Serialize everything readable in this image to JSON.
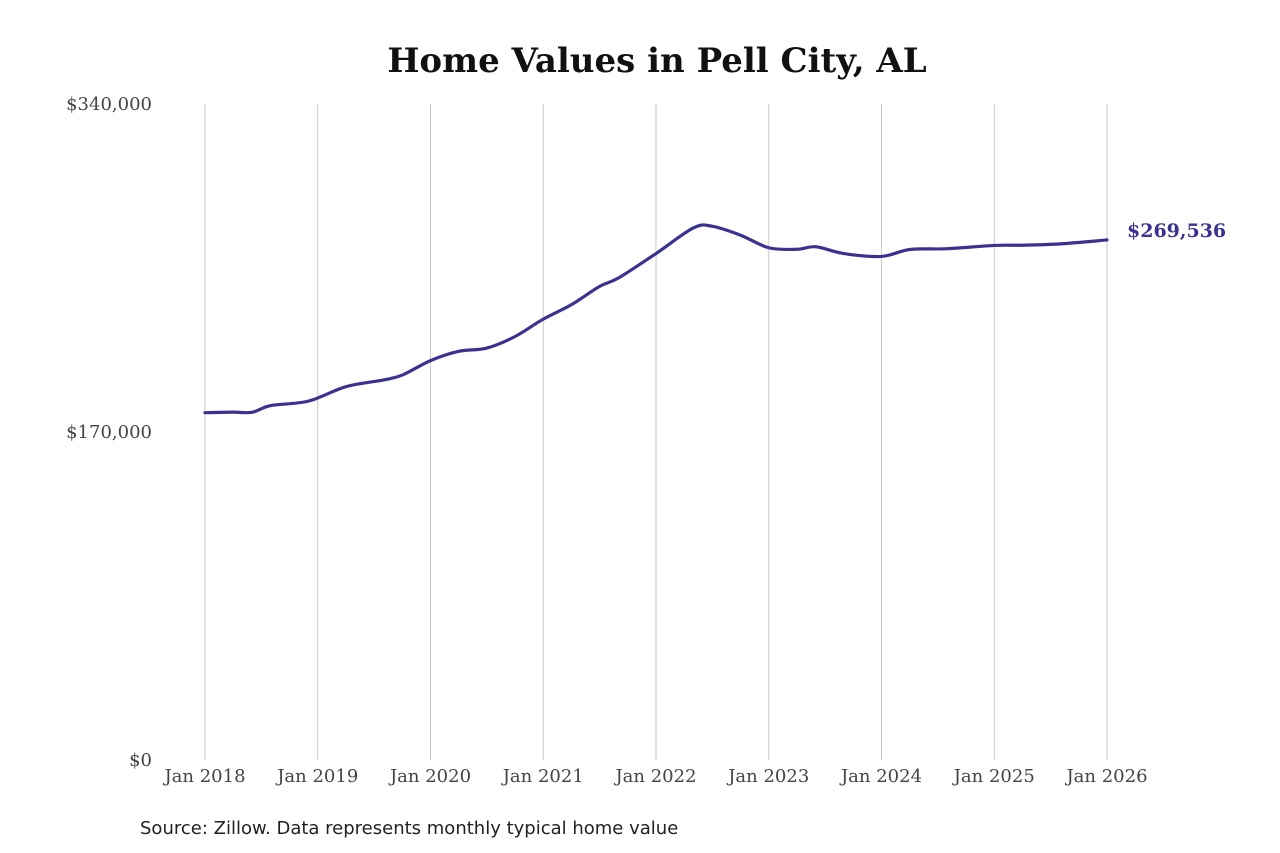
{
  "chart_data": {
    "type": "line",
    "title": "Home Values in Pell City, AL",
    "xlabel": "",
    "ylabel": "",
    "ylim": [
      0,
      340000
    ],
    "y_ticks": [
      {
        "value": 0,
        "label": "$0"
      },
      {
        "value": 170000,
        "label": "$170,000"
      },
      {
        "value": 340000,
        "label": "$340,000"
      }
    ],
    "x_ticks": [
      "Jan 2018",
      "Jan 2019",
      "Jan 2020",
      "Jan 2021",
      "Jan 2022",
      "Jan 2023",
      "Jan 2024",
      "Jan 2025",
      "Jan 2026"
    ],
    "grid": "vertical",
    "series": [
      {
        "color": "#3a3291",
        "points": [
          [
            "2018-01",
            180000
          ],
          [
            "2018-04",
            180300
          ],
          [
            "2018-06",
            180200
          ],
          [
            "2018-08",
            183700
          ],
          [
            "2018-12",
            186000
          ],
          [
            "2019-04",
            193500
          ],
          [
            "2019-08",
            197000
          ],
          [
            "2019-10",
            199500
          ],
          [
            "2020-01",
            207000
          ],
          [
            "2020-04",
            211800
          ],
          [
            "2020-07",
            213500
          ],
          [
            "2020-10",
            219500
          ],
          [
            "2021-01",
            228500
          ],
          [
            "2021-04",
            236000
          ],
          [
            "2021-07",
            245500
          ],
          [
            "2021-09",
            249800
          ],
          [
            "2022-01",
            262500
          ],
          [
            "2022-05",
            275800
          ],
          [
            "2022-07",
            276600
          ],
          [
            "2022-10",
            272000
          ],
          [
            "2023-01",
            265500
          ],
          [
            "2023-04",
            264700
          ],
          [
            "2023-06",
            266000
          ],
          [
            "2023-09",
            262500
          ],
          [
            "2024-01",
            261000
          ],
          [
            "2024-04",
            264600
          ],
          [
            "2024-08",
            265000
          ],
          [
            "2025-01",
            266700
          ],
          [
            "2025-04",
            266800
          ],
          [
            "2025-08",
            267500
          ],
          [
            "2026-01",
            269536
          ]
        ]
      }
    ],
    "end_label": "$269,536",
    "source_note": "Source: Zillow. Data represents monthly typical home value"
  }
}
